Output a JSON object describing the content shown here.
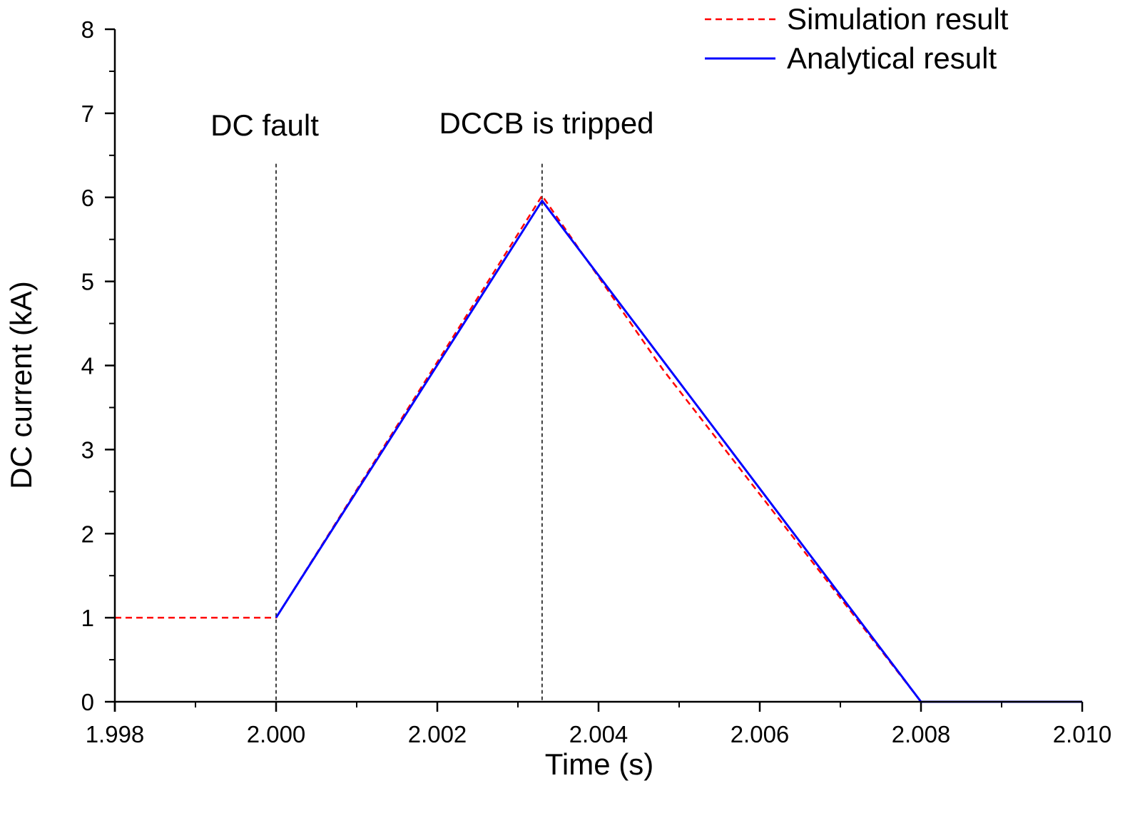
{
  "chart_data": {
    "type": "line",
    "title": "",
    "xlabel": "Time (s)",
    "ylabel": "DC current (kA)",
    "xlim": [
      1.998,
      2.01
    ],
    "ylim": [
      0,
      8
    ],
    "x_ticks": [
      1.998,
      2.0,
      2.002,
      2.004,
      2.006,
      2.008,
      2.01
    ],
    "x_tick_labels": [
      "1.998",
      "2.000",
      "2.002",
      "2.004",
      "2.006",
      "2.008",
      "2.010"
    ],
    "y_ticks": [
      0,
      1,
      2,
      3,
      4,
      5,
      6,
      7,
      8
    ],
    "y_tick_labels": [
      "0",
      "1",
      "2",
      "3",
      "4",
      "5",
      "6",
      "7",
      "8"
    ],
    "grid": false,
    "legend_position": "top-right",
    "series": [
      {
        "name": "Simulation result",
        "style": "dashed",
        "color": "#ff0000",
        "x": [
          1.998,
          2.0,
          2.0033,
          2.0048,
          2.008,
          2.01
        ],
        "y": [
          1.0,
          1.0,
          6.02,
          3.95,
          0.0,
          0.0
        ]
      },
      {
        "name": "Analytical result",
        "style": "solid",
        "color": "#0000ff",
        "x": [
          2.0,
          2.0033,
          2.008,
          2.01
        ],
        "y": [
          1.0,
          5.96,
          0.0,
          0.0
        ]
      }
    ],
    "vlines": [
      {
        "x": 2.0,
        "y_top": 6.4,
        "label": "DC fault"
      },
      {
        "x": 2.0033,
        "y_top": 6.4,
        "label": "DCCB is tripped"
      }
    ]
  }
}
